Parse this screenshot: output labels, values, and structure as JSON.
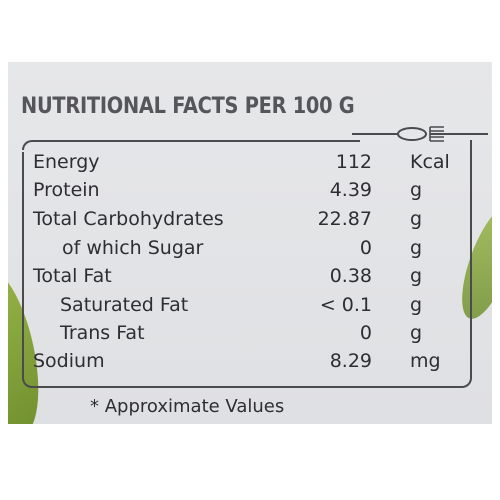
{
  "heading": "NUTRITIONAL FACTS PER 100 G",
  "rows": [
    {
      "name": "Energy",
      "value": "112",
      "unit": "Kcal",
      "indent": 0
    },
    {
      "name": "Protein",
      "value": "4.39",
      "unit": "g",
      "indent": 0
    },
    {
      "name": "Total Carbohydrates",
      "value": "22.87",
      "unit": "g",
      "indent": 0
    },
    {
      "name": "of which Sugar",
      "value": "0",
      "unit": "g",
      "indent": 2
    },
    {
      "name": "Total Fat",
      "value": "0.38",
      "unit": "g",
      "indent": 0
    },
    {
      "name": "Saturated Fat",
      "value": "< 0.1",
      "unit": "g",
      "indent": 1
    },
    {
      "name": "Trans Fat",
      "value": "0",
      "unit": "g",
      "indent": 1
    },
    {
      "name": "Sodium",
      "value": "8.29",
      "unit": "mg",
      "indent": 0
    }
  ],
  "note": "* Approximate Values",
  "colors": {
    "panel": "#e3e4e6",
    "text": "#2e2e32",
    "heading": "#55555a",
    "accent_leaf": "#7f9e36"
  },
  "icons": [
    "spoon-icon",
    "fork-icon"
  ]
}
